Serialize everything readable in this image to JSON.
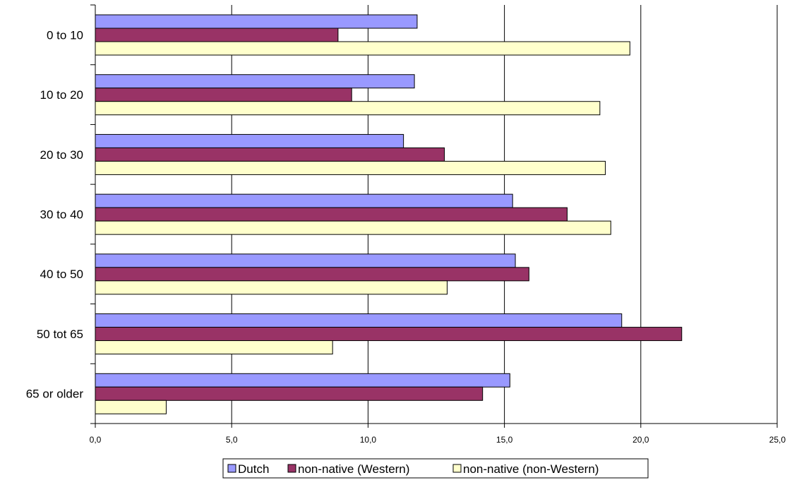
{
  "chart_data": {
    "type": "bar",
    "orientation": "horizontal",
    "categories": [
      "0 to 10",
      "10 to 20",
      "20 to 30",
      "30 to 40",
      "40 to 50",
      "50 tot 65",
      "65 or older"
    ],
    "series": [
      {
        "name": "Dutch",
        "color": "#9999ff",
        "values": [
          11.8,
          11.7,
          11.3,
          15.3,
          15.4,
          19.3,
          15.2
        ]
      },
      {
        "name": "non-native (Western)",
        "color": "#993366",
        "values": [
          8.9,
          9.4,
          12.8,
          17.3,
          15.9,
          21.5,
          14.2
        ]
      },
      {
        "name": "non-native (non-Western)",
        "color": "#ffffcc",
        "values": [
          19.6,
          18.5,
          18.7,
          18.9,
          12.9,
          8.7,
          2.6
        ]
      }
    ],
    "xticks": [
      "0,0",
      "5,0",
      "10,0",
      "15,0",
      "20,0",
      "25,0"
    ],
    "xlim": [
      0,
      25
    ],
    "grid": true,
    "legend_position": "bottom"
  }
}
